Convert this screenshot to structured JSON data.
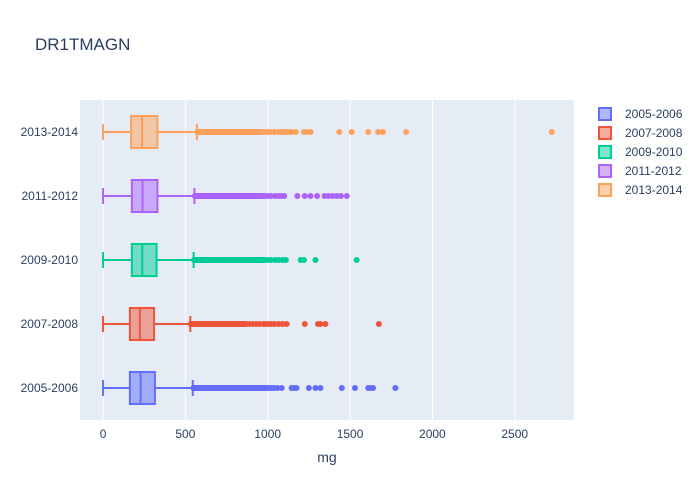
{
  "chart_data": {
    "type": "box",
    "orientation": "horizontal",
    "title": "DR1TMAGN",
    "xlabel": "mg",
    "ylabel": "",
    "xlim": [
      -140,
      2860
    ],
    "x_ticks": [
      0,
      500,
      1000,
      1500,
      2000,
      2500
    ],
    "x_tick_labels": [
      "0",
      "500",
      "1000",
      "1500",
      "2000",
      "2500"
    ],
    "grid": true,
    "legend_position": "top-right",
    "categories": [
      "2005-2006",
      "2007-2008",
      "2009-2010",
      "2011-2012",
      "2013-2014"
    ],
    "series": [
      {
        "name": "2005-2006",
        "color": "#636efa",
        "min": 0,
        "q1": 163,
        "median": 228,
        "q3": 315,
        "upper_fence": 545,
        "outliers_dense_range": [
          548,
          1000
        ],
        "outliers": [
          1010,
          1025,
          1040,
          1060,
          1085,
          1145,
          1160,
          1175,
          1250,
          1290,
          1320,
          1450,
          1530,
          1610,
          1625,
          1640,
          1775
        ]
      },
      {
        "name": "2007-2008",
        "color": "#ef553b",
        "min": 0,
        "q1": 163,
        "median": 223,
        "q3": 310,
        "upper_fence": 530,
        "outliers_dense_range": [
          533,
          870
        ],
        "outliers": [
          890,
          910,
          930,
          950,
          975,
          990,
          1005,
          1020,
          1040,
          1065,
          1090,
          1115,
          1225,
          1305,
          1320,
          1350,
          1675
        ]
      },
      {
        "name": "2009-2010",
        "color": "#00cc96",
        "min": 0,
        "q1": 175,
        "median": 238,
        "q3": 325,
        "upper_fence": 550,
        "outliers_dense_range": [
          553,
          985
        ],
        "outliers": [
          1000,
          1020,
          1045,
          1065,
          1090,
          1110,
          1200,
          1220,
          1290,
          1540
        ]
      },
      {
        "name": "2011-2012",
        "color": "#ab63fa",
        "min": 0,
        "q1": 175,
        "median": 240,
        "q3": 330,
        "upper_fence": 555,
        "outliers_dense_range": [
          558,
          975
        ],
        "outliers": [
          985,
          1000,
          1020,
          1045,
          1065,
          1085,
          1100,
          1180,
          1225,
          1260,
          1300,
          1345,
          1370,
          1395,
          1420,
          1445,
          1480
        ]
      },
      {
        "name": "2013-2014",
        "color": "#ffa15a",
        "min": 0,
        "q1": 170,
        "median": 237,
        "q3": 330,
        "upper_fence": 570,
        "outliers_dense_range": [
          573,
          960
        ],
        "outliers": [
          975,
          995,
          1015,
          1040,
          1065,
          1085,
          1105,
          1115,
          1130,
          1145,
          1170,
          1220,
          1235,
          1260,
          1435,
          1510,
          1610,
          1670,
          1700,
          1840,
          2725
        ]
      }
    ]
  }
}
